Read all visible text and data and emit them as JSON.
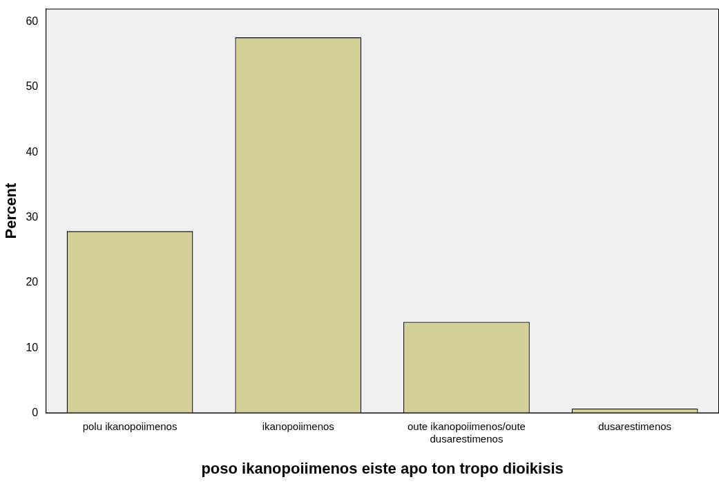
{
  "chart_data": {
    "type": "bar",
    "xlabel": "poso ikanopoiimenos eiste apo ton tropo dioikisis",
    "ylabel": "Percent",
    "categories": [
      "polu ikanopoiimenos",
      "ikanopoiimenos",
      "oute ikanopoiimenos/oute dusarestimenos",
      "dusarestimenos"
    ],
    "values": [
      27.9,
      57.6,
      14.0,
      0.7
    ],
    "color": "#d3cf98",
    "ylim": [
      0,
      62
    ],
    "yticks": [
      0,
      10,
      20,
      30,
      40,
      50,
      60
    ],
    "grid": false,
    "legend": false
  }
}
